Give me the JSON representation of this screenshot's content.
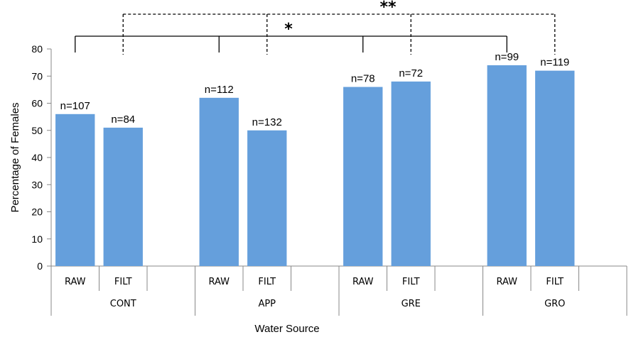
{
  "chart_data": {
    "type": "bar",
    "groups": [
      "CONT",
      "APP",
      "GRE",
      "GRO"
    ],
    "subcategories": [
      "RAW",
      "FILT"
    ],
    "values": [
      56,
      51,
      62,
      50,
      66,
      68,
      74,
      72
    ],
    "data_labels": [
      "n=107",
      "n=84",
      "n=112",
      "n=132",
      "n=78",
      "n=72",
      "n=99",
      "n=119"
    ],
    "xlabel": "Water Source",
    "ylabel": "Percentage of Females",
    "ylim": [
      0,
      80
    ],
    "yticks": [
      0,
      10,
      20,
      30,
      40,
      50,
      60,
      70,
      80
    ],
    "bar_color": "#659fdc",
    "grid": false,
    "significance": [
      {
        "label": "*",
        "style": "solid",
        "from": "RAW",
        "to": "RAW",
        "groups": [
          "CONT",
          "APP",
          "GRE",
          "GRO"
        ]
      },
      {
        "label": "**",
        "style": "dashed",
        "from": "FILT",
        "to": "FILT",
        "groups": [
          "CONT",
          "APP",
          "GRE",
          "GRO"
        ]
      }
    ]
  }
}
